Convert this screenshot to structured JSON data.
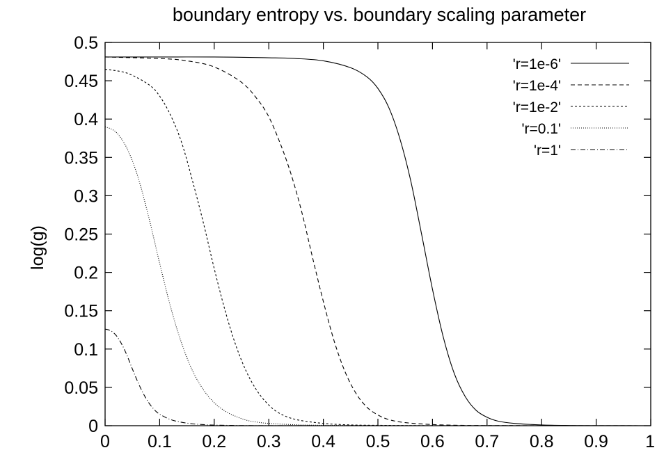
{
  "chart_data": {
    "type": "line",
    "title": "boundary entropy vs. boundary scaling parameter",
    "xlabel": "",
    "ylabel": "log(g)",
    "xlim": [
      0,
      1
    ],
    "ylim": [
      0,
      0.5
    ],
    "x_ticks": [
      "0",
      "0.1",
      "0.2",
      "0.3",
      "0.4",
      "0.5",
      "0.6",
      "0.7",
      "0.8",
      "0.9",
      "1"
    ],
    "y_ticks": [
      "0",
      "0.05",
      "0.1",
      "0.15",
      "0.2",
      "0.25",
      "0.3",
      "0.35",
      "0.4",
      "0.45",
      "0.5"
    ],
    "grid": false,
    "legend_position": "top-right",
    "series": [
      {
        "name": "'r=1e-6'",
        "dash": "solid",
        "x": [
          0,
          0.1,
          0.2,
          0.3,
          0.35,
          0.4,
          0.45,
          0.48,
          0.5,
          0.52,
          0.54,
          0.56,
          0.58,
          0.6,
          0.62,
          0.64,
          0.66,
          0.68,
          0.7,
          0.72,
          0.75,
          0.8,
          0.85,
          0.9,
          1.0
        ],
        "y": [
          0.481,
          0.481,
          0.481,
          0.48,
          0.479,
          0.476,
          0.467,
          0.455,
          0.44,
          0.415,
          0.375,
          0.32,
          0.25,
          0.178,
          0.115,
          0.068,
          0.038,
          0.02,
          0.011,
          0.006,
          0.003,
          0.001,
          0.0003,
          0.0001,
          0
        ]
      },
      {
        "name": "'r=1e-4'",
        "dash": "dash",
        "x": [
          0,
          0.1,
          0.15,
          0.2,
          0.25,
          0.28,
          0.3,
          0.32,
          0.34,
          0.36,
          0.38,
          0.4,
          0.42,
          0.44,
          0.46,
          0.48,
          0.5,
          0.52,
          0.55,
          0.6,
          0.65,
          0.7,
          0.8,
          1.0
        ],
        "y": [
          0.481,
          0.479,
          0.476,
          0.468,
          0.448,
          0.425,
          0.403,
          0.37,
          0.33,
          0.28,
          0.22,
          0.162,
          0.11,
          0.07,
          0.042,
          0.024,
          0.014,
          0.008,
          0.004,
          0.0015,
          0.0005,
          0.0002,
          0.0001,
          0
        ]
      },
      {
        "name": "'r=1e-2'",
        "dash": "short-dash",
        "x": [
          0,
          0.04,
          0.08,
          0.1,
          0.12,
          0.14,
          0.16,
          0.18,
          0.2,
          0.22,
          0.24,
          0.26,
          0.28,
          0.3,
          0.32,
          0.35,
          0.4,
          0.45,
          0.5,
          0.6,
          0.8,
          1.0
        ],
        "y": [
          0.465,
          0.46,
          0.445,
          0.43,
          0.405,
          0.37,
          0.32,
          0.265,
          0.205,
          0.15,
          0.104,
          0.069,
          0.044,
          0.027,
          0.016,
          0.008,
          0.003,
          0.001,
          0.0005,
          0.0001,
          0,
          0
        ]
      },
      {
        "name": "'r=0.1'",
        "dash": "dot",
        "x": [
          0,
          0.02,
          0.04,
          0.06,
          0.08,
          0.1,
          0.12,
          0.14,
          0.16,
          0.18,
          0.2,
          0.22,
          0.24,
          0.26,
          0.28,
          0.3,
          0.35,
          0.4,
          0.5,
          0.6,
          0.8,
          1.0
        ],
        "y": [
          0.39,
          0.383,
          0.362,
          0.325,
          0.272,
          0.212,
          0.155,
          0.108,
          0.072,
          0.047,
          0.03,
          0.019,
          0.012,
          0.007,
          0.0045,
          0.003,
          0.0012,
          0.0005,
          0.0001,
          0,
          0,
          0
        ]
      },
      {
        "name": "'r=1'",
        "dash": "dash-dot",
        "x": [
          0,
          0.01,
          0.02,
          0.03,
          0.04,
          0.05,
          0.06,
          0.07,
          0.08,
          0.09,
          0.1,
          0.12,
          0.14,
          0.16,
          0.18,
          0.2,
          0.25,
          0.3,
          0.4,
          0.5,
          0.7,
          1.0
        ],
        "y": [
          0.126,
          0.124,
          0.118,
          0.107,
          0.092,
          0.074,
          0.057,
          0.042,
          0.03,
          0.021,
          0.015,
          0.008,
          0.0045,
          0.0025,
          0.0014,
          0.0008,
          0.0002,
          0.0001,
          0,
          0,
          0,
          0
        ]
      }
    ]
  }
}
